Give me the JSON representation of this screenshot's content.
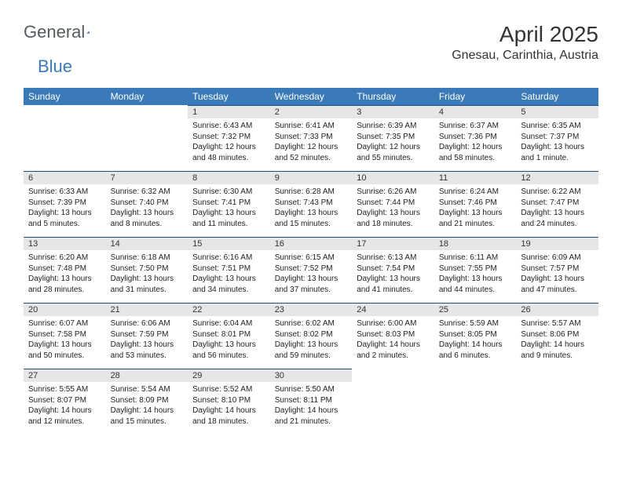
{
  "brand": {
    "part1": "General",
    "part2": "Blue"
  },
  "title": "April 2025",
  "location": "Gnesau, Carinthia, Austria",
  "colors": {
    "header_bg": "#3a7ab8",
    "header_text": "#ffffff",
    "daynum_bg": "#e6e6e6",
    "row_divider": "#1f4e79",
    "text": "#222222",
    "brand_gray": "#555a5f",
    "brand_blue": "#3a7ab8",
    "page_bg": "#ffffff"
  },
  "typography": {
    "title_fontsize": 28,
    "location_fontsize": 16,
    "dayname_fontsize": 12,
    "daynum_fontsize": 11,
    "body_fontsize": 10,
    "logo_fontsize": 22
  },
  "dayNames": [
    "Sunday",
    "Monday",
    "Tuesday",
    "Wednesday",
    "Thursday",
    "Friday",
    "Saturday"
  ],
  "weeks": [
    [
      null,
      null,
      {
        "n": 1,
        "sr": "Sunrise: 6:43 AM",
        "ss": "Sunset: 7:32 PM",
        "dl": "Daylight: 12 hours and 48 minutes."
      },
      {
        "n": 2,
        "sr": "Sunrise: 6:41 AM",
        "ss": "Sunset: 7:33 PM",
        "dl": "Daylight: 12 hours and 52 minutes."
      },
      {
        "n": 3,
        "sr": "Sunrise: 6:39 AM",
        "ss": "Sunset: 7:35 PM",
        "dl": "Daylight: 12 hours and 55 minutes."
      },
      {
        "n": 4,
        "sr": "Sunrise: 6:37 AM",
        "ss": "Sunset: 7:36 PM",
        "dl": "Daylight: 12 hours and 58 minutes."
      },
      {
        "n": 5,
        "sr": "Sunrise: 6:35 AM",
        "ss": "Sunset: 7:37 PM",
        "dl": "Daylight: 13 hours and 1 minute."
      }
    ],
    [
      {
        "n": 6,
        "sr": "Sunrise: 6:33 AM",
        "ss": "Sunset: 7:39 PM",
        "dl": "Daylight: 13 hours and 5 minutes."
      },
      {
        "n": 7,
        "sr": "Sunrise: 6:32 AM",
        "ss": "Sunset: 7:40 PM",
        "dl": "Daylight: 13 hours and 8 minutes."
      },
      {
        "n": 8,
        "sr": "Sunrise: 6:30 AM",
        "ss": "Sunset: 7:41 PM",
        "dl": "Daylight: 13 hours and 11 minutes."
      },
      {
        "n": 9,
        "sr": "Sunrise: 6:28 AM",
        "ss": "Sunset: 7:43 PM",
        "dl": "Daylight: 13 hours and 15 minutes."
      },
      {
        "n": 10,
        "sr": "Sunrise: 6:26 AM",
        "ss": "Sunset: 7:44 PM",
        "dl": "Daylight: 13 hours and 18 minutes."
      },
      {
        "n": 11,
        "sr": "Sunrise: 6:24 AM",
        "ss": "Sunset: 7:46 PM",
        "dl": "Daylight: 13 hours and 21 minutes."
      },
      {
        "n": 12,
        "sr": "Sunrise: 6:22 AM",
        "ss": "Sunset: 7:47 PM",
        "dl": "Daylight: 13 hours and 24 minutes."
      }
    ],
    [
      {
        "n": 13,
        "sr": "Sunrise: 6:20 AM",
        "ss": "Sunset: 7:48 PM",
        "dl": "Daylight: 13 hours and 28 minutes."
      },
      {
        "n": 14,
        "sr": "Sunrise: 6:18 AM",
        "ss": "Sunset: 7:50 PM",
        "dl": "Daylight: 13 hours and 31 minutes."
      },
      {
        "n": 15,
        "sr": "Sunrise: 6:16 AM",
        "ss": "Sunset: 7:51 PM",
        "dl": "Daylight: 13 hours and 34 minutes."
      },
      {
        "n": 16,
        "sr": "Sunrise: 6:15 AM",
        "ss": "Sunset: 7:52 PM",
        "dl": "Daylight: 13 hours and 37 minutes."
      },
      {
        "n": 17,
        "sr": "Sunrise: 6:13 AM",
        "ss": "Sunset: 7:54 PM",
        "dl": "Daylight: 13 hours and 41 minutes."
      },
      {
        "n": 18,
        "sr": "Sunrise: 6:11 AM",
        "ss": "Sunset: 7:55 PM",
        "dl": "Daylight: 13 hours and 44 minutes."
      },
      {
        "n": 19,
        "sr": "Sunrise: 6:09 AM",
        "ss": "Sunset: 7:57 PM",
        "dl": "Daylight: 13 hours and 47 minutes."
      }
    ],
    [
      {
        "n": 20,
        "sr": "Sunrise: 6:07 AM",
        "ss": "Sunset: 7:58 PM",
        "dl": "Daylight: 13 hours and 50 minutes."
      },
      {
        "n": 21,
        "sr": "Sunrise: 6:06 AM",
        "ss": "Sunset: 7:59 PM",
        "dl": "Daylight: 13 hours and 53 minutes."
      },
      {
        "n": 22,
        "sr": "Sunrise: 6:04 AM",
        "ss": "Sunset: 8:01 PM",
        "dl": "Daylight: 13 hours and 56 minutes."
      },
      {
        "n": 23,
        "sr": "Sunrise: 6:02 AM",
        "ss": "Sunset: 8:02 PM",
        "dl": "Daylight: 13 hours and 59 minutes."
      },
      {
        "n": 24,
        "sr": "Sunrise: 6:00 AM",
        "ss": "Sunset: 8:03 PM",
        "dl": "Daylight: 14 hours and 2 minutes."
      },
      {
        "n": 25,
        "sr": "Sunrise: 5:59 AM",
        "ss": "Sunset: 8:05 PM",
        "dl": "Daylight: 14 hours and 6 minutes."
      },
      {
        "n": 26,
        "sr": "Sunrise: 5:57 AM",
        "ss": "Sunset: 8:06 PM",
        "dl": "Daylight: 14 hours and 9 minutes."
      }
    ],
    [
      {
        "n": 27,
        "sr": "Sunrise: 5:55 AM",
        "ss": "Sunset: 8:07 PM",
        "dl": "Daylight: 14 hours and 12 minutes."
      },
      {
        "n": 28,
        "sr": "Sunrise: 5:54 AM",
        "ss": "Sunset: 8:09 PM",
        "dl": "Daylight: 14 hours and 15 minutes."
      },
      {
        "n": 29,
        "sr": "Sunrise: 5:52 AM",
        "ss": "Sunset: 8:10 PM",
        "dl": "Daylight: 14 hours and 18 minutes."
      },
      {
        "n": 30,
        "sr": "Sunrise: 5:50 AM",
        "ss": "Sunset: 8:11 PM",
        "dl": "Daylight: 14 hours and 21 minutes."
      },
      null,
      null,
      null
    ]
  ]
}
